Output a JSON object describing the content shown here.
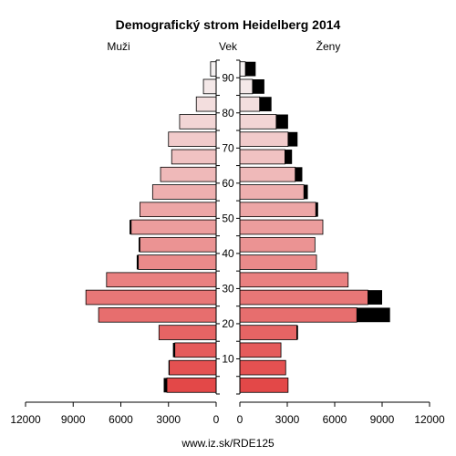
{
  "chart_data": {
    "type": "bar",
    "orientation": "horizontal-pyramid",
    "title": "Demografický strom Heidelberg 2014",
    "left_label": "Muži",
    "center_label": "Vek",
    "right_label": "Ženy",
    "footer": "www.iz.sk/RDE125",
    "xlim": [
      0,
      12000
    ],
    "x_ticks": [
      0,
      3000,
      6000,
      9000,
      12000
    ],
    "x_tick_labels": [
      "0",
      "3000",
      "6000",
      "9000",
      "12000"
    ],
    "age_tick_labels": [
      "10",
      "20",
      "30",
      "40",
      "50",
      "60",
      "70",
      "80",
      "90"
    ],
    "age_groups": [
      "0-4",
      "5-9",
      "10-14",
      "15-19",
      "20-24",
      "25-29",
      "30-34",
      "35-39",
      "40-44",
      "45-49",
      "50-54",
      "55-59",
      "60-64",
      "65-69",
      "70-74",
      "75-79",
      "80-84",
      "85-89",
      "90+"
    ],
    "series": [
      {
        "name": "Muži",
        "values": [
          3100,
          2950,
          2600,
          3600,
          7400,
          8200,
          6900,
          4900,
          4800,
          5350,
          4800,
          4000,
          3500,
          2800,
          3000,
          2300,
          1250,
          800,
          350
        ]
      },
      {
        "name": "Muži nadbytok",
        "values": [
          200,
          50,
          120,
          0,
          0,
          0,
          0,
          100,
          80,
          100,
          0,
          0,
          0,
          0,
          0,
          0,
          0,
          0,
          0
        ]
      },
      {
        "name": "Ženy",
        "values": [
          3050,
          2900,
          2600,
          3600,
          7400,
          8100,
          6850,
          4850,
          4750,
          5250,
          4800,
          4050,
          3500,
          2850,
          3050,
          2300,
          1250,
          800,
          350
        ]
      },
      {
        "name": "Ženy nadbytok",
        "values": [
          0,
          0,
          0,
          80,
          2100,
          900,
          0,
          0,
          0,
          0,
          150,
          250,
          450,
          450,
          600,
          750,
          750,
          750,
          650
        ]
      }
    ],
    "colors": {
      "excess": "#000000",
      "border": "#000000",
      "bottom_color": "#e34848",
      "top_color": "#f5f1f1"
    }
  }
}
